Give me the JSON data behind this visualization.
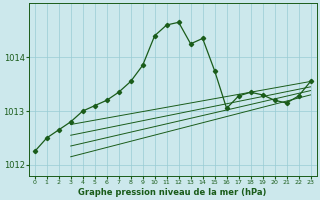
{
  "background_color": "#cce8ec",
  "grid_color": "#99ccd4",
  "line_color": "#1a5c1a",
  "marker_color": "#1a5c1a",
  "xlabel": "Graphe pression niveau de la mer (hPa)",
  "ylim": [
    1011.8,
    1015.0
  ],
  "yticks": [
    1012,
    1013,
    1014
  ],
  "xlim": [
    -0.5,
    23.5
  ],
  "xticks": [
    0,
    1,
    2,
    3,
    4,
    5,
    6,
    7,
    8,
    9,
    10,
    11,
    12,
    13,
    14,
    15,
    16,
    17,
    18,
    19,
    20,
    21,
    22,
    23
  ],
  "series1_x": [
    0,
    1,
    2,
    3,
    4,
    5,
    6,
    7,
    8,
    9,
    10,
    11,
    12,
    13,
    14,
    15,
    16,
    17,
    18,
    19,
    20,
    21,
    22,
    23
  ],
  "series1_y": [
    1012.25,
    1012.5,
    1012.65,
    1012.8,
    1013.0,
    1013.1,
    1013.2,
    1013.35,
    1013.55,
    1013.85,
    1014.4,
    1014.6,
    1014.65,
    1014.25,
    1014.35,
    1013.75,
    1013.05,
    1013.28,
    1013.35,
    1013.3,
    1013.2,
    1013.15,
    1013.28,
    1013.55
  ],
  "series2_x": [
    3,
    23
  ],
  "series2_y": [
    1012.75,
    1013.55
  ],
  "series3_x": [
    3,
    23
  ],
  "series3_y": [
    1012.55,
    1013.45
  ],
  "series4_x": [
    3,
    23
  ],
  "series4_y": [
    1012.35,
    1013.38
  ],
  "series5_x": [
    3,
    23
  ],
  "series5_y": [
    1012.15,
    1013.3
  ]
}
